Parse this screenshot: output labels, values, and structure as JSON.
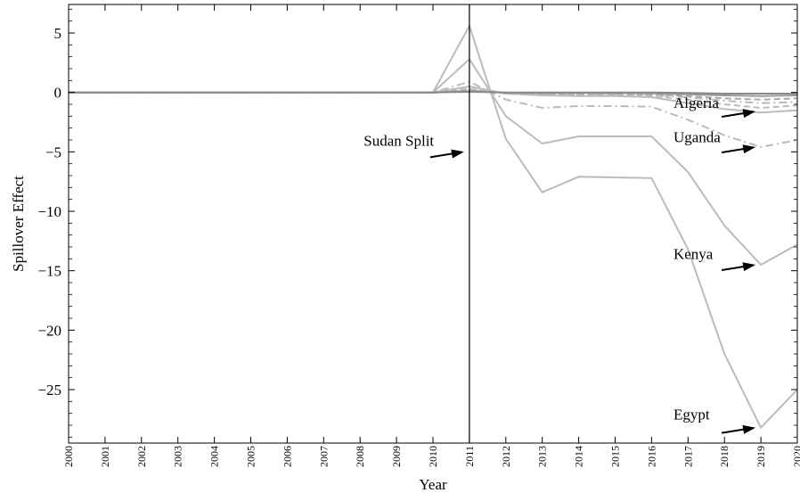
{
  "chart_data": {
    "type": "line",
    "title": "",
    "xlabel": "Year",
    "ylabel": "Spillover Effect",
    "x": [
      2000,
      2001,
      2002,
      2003,
      2004,
      2005,
      2006,
      2007,
      2008,
      2009,
      2010,
      2011,
      2012,
      2013,
      2014,
      2015,
      2016,
      2017,
      2018,
      2019,
      2020
    ],
    "xlim": [
      2000,
      2020
    ],
    "ylim": [
      -29.5,
      7.4
    ],
    "xticks": [
      "2000",
      "2001",
      "2002",
      "2003",
      "2004",
      "2005",
      "2006",
      "2007",
      "2008",
      "2009",
      "2010",
      "2011",
      "2012",
      "2013",
      "2014",
      "2015",
      "2016",
      "2017",
      "2018",
      "2019",
      "2020"
    ],
    "yticks": [
      5,
      0,
      -5,
      -10,
      -15,
      -20,
      -25
    ],
    "ytick_labels": [
      "5",
      "0",
      "−5",
      "−10",
      "−15",
      "−20",
      "−25"
    ],
    "grid": false,
    "line_color": "#bbbbbb",
    "series": [
      {
        "values": [
          0,
          0,
          0,
          0,
          0,
          0,
          0,
          0,
          0,
          0,
          0,
          5.6,
          -3.9,
          -8.4,
          -7.1,
          -7.15,
          -7.2,
          -13.2,
          -22.0,
          -28.2,
          -25.0
        ],
        "style": "solid",
        "color": "#bbbbbb"
      },
      {
        "values": [
          0,
          0,
          0,
          0,
          0,
          0,
          0,
          0,
          0,
          0,
          0,
          2.8,
          -2.0,
          -4.3,
          -3.7,
          -3.7,
          -3.7,
          -6.7,
          -11.2,
          -14.5,
          -12.8
        ],
        "style": "solid",
        "color": "#bbbbbb"
      },
      {
        "values": [
          0,
          0,
          0,
          0,
          0,
          0,
          0,
          0,
          0,
          0,
          0,
          0.9,
          -0.6,
          -1.3,
          -1.15,
          -1.15,
          -1.2,
          -2.3,
          -3.6,
          -4.6,
          -4.0
        ],
        "style": "dashdot",
        "color": "#bbbbbb"
      },
      {
        "values": [
          0,
          0,
          0,
          0,
          0,
          0,
          0,
          0,
          0,
          0,
          0,
          0.5,
          -0.1,
          -0.25,
          -0.3,
          -0.3,
          -0.4,
          -0.9,
          -1.4,
          -1.7,
          -1.5
        ],
        "style": "solid",
        "color": "#bbbbbb"
      },
      {
        "values": [
          0,
          0,
          0,
          0,
          0,
          0,
          0,
          0,
          0,
          0,
          0,
          0.3,
          -0.1,
          -0.2,
          -0.2,
          -0.2,
          -0.3,
          -0.6,
          -1.0,
          -1.3,
          -1.1
        ],
        "style": "dashed",
        "color": "#bbbbbb"
      },
      {
        "values": [
          0,
          0,
          0,
          0,
          0,
          0,
          0,
          0,
          0,
          0,
          0,
          0.2,
          -0.05,
          -0.15,
          -0.15,
          -0.15,
          -0.2,
          -0.4,
          -0.7,
          -0.9,
          -0.8
        ],
        "style": "dashdot",
        "color": "#bbbbbb"
      },
      {
        "values": [
          0,
          0,
          0,
          0,
          0,
          0,
          0,
          0,
          0,
          0,
          0,
          0.15,
          -0.05,
          -0.1,
          -0.1,
          -0.1,
          -0.15,
          -0.3,
          -0.5,
          -0.6,
          -0.5
        ],
        "style": "dashed",
        "color": "#aaaaaa"
      },
      {
        "values": [
          0,
          0,
          0,
          0,
          0,
          0,
          0,
          0,
          0,
          0,
          0,
          0.1,
          -0.02,
          -0.05,
          -0.05,
          -0.05,
          -0.08,
          -0.15,
          -0.25,
          -0.3,
          -0.25
        ],
        "style": "solid",
        "color": "#999999"
      },
      {
        "values": [
          0,
          0,
          0,
          0,
          0,
          0,
          0,
          0,
          0,
          0,
          0,
          0.05,
          0,
          0,
          0,
          0,
          0,
          -0.05,
          -0.1,
          -0.1,
          -0.1
        ],
        "style": "solid",
        "color": "#888888"
      }
    ],
    "vline": {
      "x": 2011,
      "color": "#000000"
    },
    "annotations": [
      {
        "text": "Sudan Split",
        "xy": [
          2011,
          -5.0
        ],
        "text_xy": [
          2008.1,
          -4.5
        ]
      },
      {
        "text": "Algeria",
        "xy": [
          2019,
          -1.6
        ],
        "text_xy": [
          2016.6,
          -1.3
        ]
      },
      {
        "text": "Uganda",
        "xy": [
          2019,
          -4.6
        ],
        "text_xy": [
          2016.6,
          -4.2
        ]
      },
      {
        "text": "Kenya",
        "xy": [
          2019,
          -14.5
        ],
        "text_xy": [
          2016.6,
          -14.0
        ]
      },
      {
        "text": "Egypt",
        "xy": [
          2019,
          -28.2
        ],
        "text_xy": [
          2016.6,
          -27.5
        ]
      }
    ]
  }
}
